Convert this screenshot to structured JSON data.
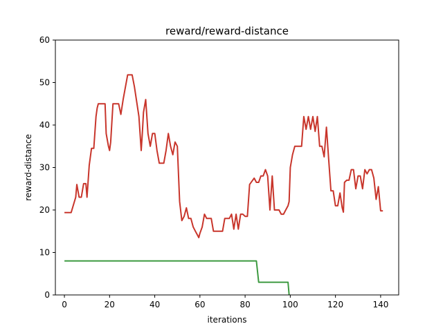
{
  "chart_data": {
    "type": "line",
    "title": "reward/reward-distance",
    "xlabel": "iterations",
    "ylabel": "reward-distance",
    "xlim": [
      -4,
      148
    ],
    "ylim": [
      0,
      60
    ],
    "xticks": [
      0,
      20,
      40,
      60,
      80,
      100,
      120,
      140
    ],
    "yticks": [
      0,
      10,
      20,
      30,
      40,
      50,
      60
    ],
    "grid": false,
    "legend": "none",
    "series": [
      {
        "color": "#c8352b",
        "points": [
          [
            0,
            19.4
          ],
          [
            3,
            19.4
          ],
          [
            5,
            23
          ],
          [
            5.5,
            26
          ],
          [
            6.5,
            23
          ],
          [
            7.5,
            23
          ],
          [
            8.5,
            26.2
          ],
          [
            9.5,
            26.2
          ],
          [
            10,
            23
          ],
          [
            11,
            30.5
          ],
          [
            12,
            34.5
          ],
          [
            13,
            34.5
          ],
          [
            14,
            42
          ],
          [
            14.5,
            44
          ],
          [
            15,
            45
          ],
          [
            18,
            45
          ],
          [
            18.5,
            38
          ],
          [
            19.5,
            35
          ],
          [
            20,
            34
          ],
          [
            20.5,
            36
          ],
          [
            21.5,
            45
          ],
          [
            24,
            45
          ],
          [
            25,
            42.5
          ],
          [
            26,
            46
          ],
          [
            28,
            51.8
          ],
          [
            30,
            51.8
          ],
          [
            31,
            49
          ],
          [
            33,
            42
          ],
          [
            34,
            34
          ],
          [
            34.5,
            38
          ],
          [
            35,
            43
          ],
          [
            36,
            46
          ],
          [
            37,
            38
          ],
          [
            38,
            35
          ],
          [
            39,
            38
          ],
          [
            40,
            38
          ],
          [
            41,
            34
          ],
          [
            42,
            31
          ],
          [
            44,
            31
          ],
          [
            45,
            34
          ],
          [
            46,
            38
          ],
          [
            47,
            35
          ],
          [
            48,
            33
          ],
          [
            49,
            36
          ],
          [
            50,
            35
          ],
          [
            51,
            22
          ],
          [
            52,
            17.5
          ],
          [
            53,
            18.5
          ],
          [
            54,
            20.5
          ],
          [
            55,
            18
          ],
          [
            56,
            18
          ],
          [
            57,
            16
          ],
          [
            58,
            15
          ],
          [
            59,
            14
          ],
          [
            59.5,
            13.5
          ],
          [
            60,
            14.5
          ],
          [
            61,
            16
          ],
          [
            62,
            19
          ],
          [
            63,
            18
          ],
          [
            65,
            18
          ],
          [
            66,
            15
          ],
          [
            70,
            15
          ],
          [
            71,
            18
          ],
          [
            73,
            18
          ],
          [
            74,
            19
          ],
          [
            75,
            15.5
          ],
          [
            76,
            19
          ],
          [
            77,
            15.5
          ],
          [
            78,
            19
          ],
          [
            79,
            19
          ],
          [
            80,
            18.5
          ],
          [
            81,
            18.5
          ],
          [
            82,
            26
          ],
          [
            84,
            27.5
          ],
          [
            85,
            26.5
          ],
          [
            86,
            26.5
          ],
          [
            87,
            28
          ],
          [
            88,
            28
          ],
          [
            89,
            29.5
          ],
          [
            90,
            28
          ],
          [
            91,
            20
          ],
          [
            92,
            28
          ],
          [
            93,
            20
          ],
          [
            95,
            20
          ],
          [
            96,
            19
          ],
          [
            97,
            19
          ],
          [
            98,
            20
          ],
          [
            99,
            21
          ],
          [
            99.5,
            22
          ],
          [
            100,
            30
          ],
          [
            101,
            33
          ],
          [
            102,
            35
          ],
          [
            105,
            35
          ],
          [
            106,
            42
          ],
          [
            107,
            39
          ],
          [
            108,
            42
          ],
          [
            109,
            39
          ],
          [
            110,
            42
          ],
          [
            111,
            38.5
          ],
          [
            112,
            42
          ],
          [
            113,
            35
          ],
          [
            114,
            35
          ],
          [
            115,
            32.5
          ],
          [
            116,
            39.5
          ],
          [
            117,
            32
          ],
          [
            118,
            24.5
          ],
          [
            119,
            24.5
          ],
          [
            120,
            21
          ],
          [
            121,
            21
          ],
          [
            122,
            24
          ],
          [
            123,
            20.5
          ],
          [
            123.5,
            19.5
          ],
          [
            124,
            26.5
          ],
          [
            125,
            27
          ],
          [
            126,
            27
          ],
          [
            127,
            29.5
          ],
          [
            128,
            29.5
          ],
          [
            129,
            25
          ],
          [
            130,
            28
          ],
          [
            131,
            28
          ],
          [
            132,
            25
          ],
          [
            133,
            29.5
          ],
          [
            134,
            28.5
          ],
          [
            135,
            29.5
          ],
          [
            136,
            29.5
          ],
          [
            137,
            27.5
          ],
          [
            138,
            22.5
          ],
          [
            139,
            25.5
          ],
          [
            140,
            19.8
          ],
          [
            141,
            19.8
          ]
        ]
      },
      {
        "color": "#3d9a40",
        "points": [
          [
            0,
            8
          ],
          [
            85,
            8
          ],
          [
            86,
            3
          ],
          [
            99,
            3
          ],
          [
            99.5,
            0
          ]
        ]
      }
    ]
  }
}
